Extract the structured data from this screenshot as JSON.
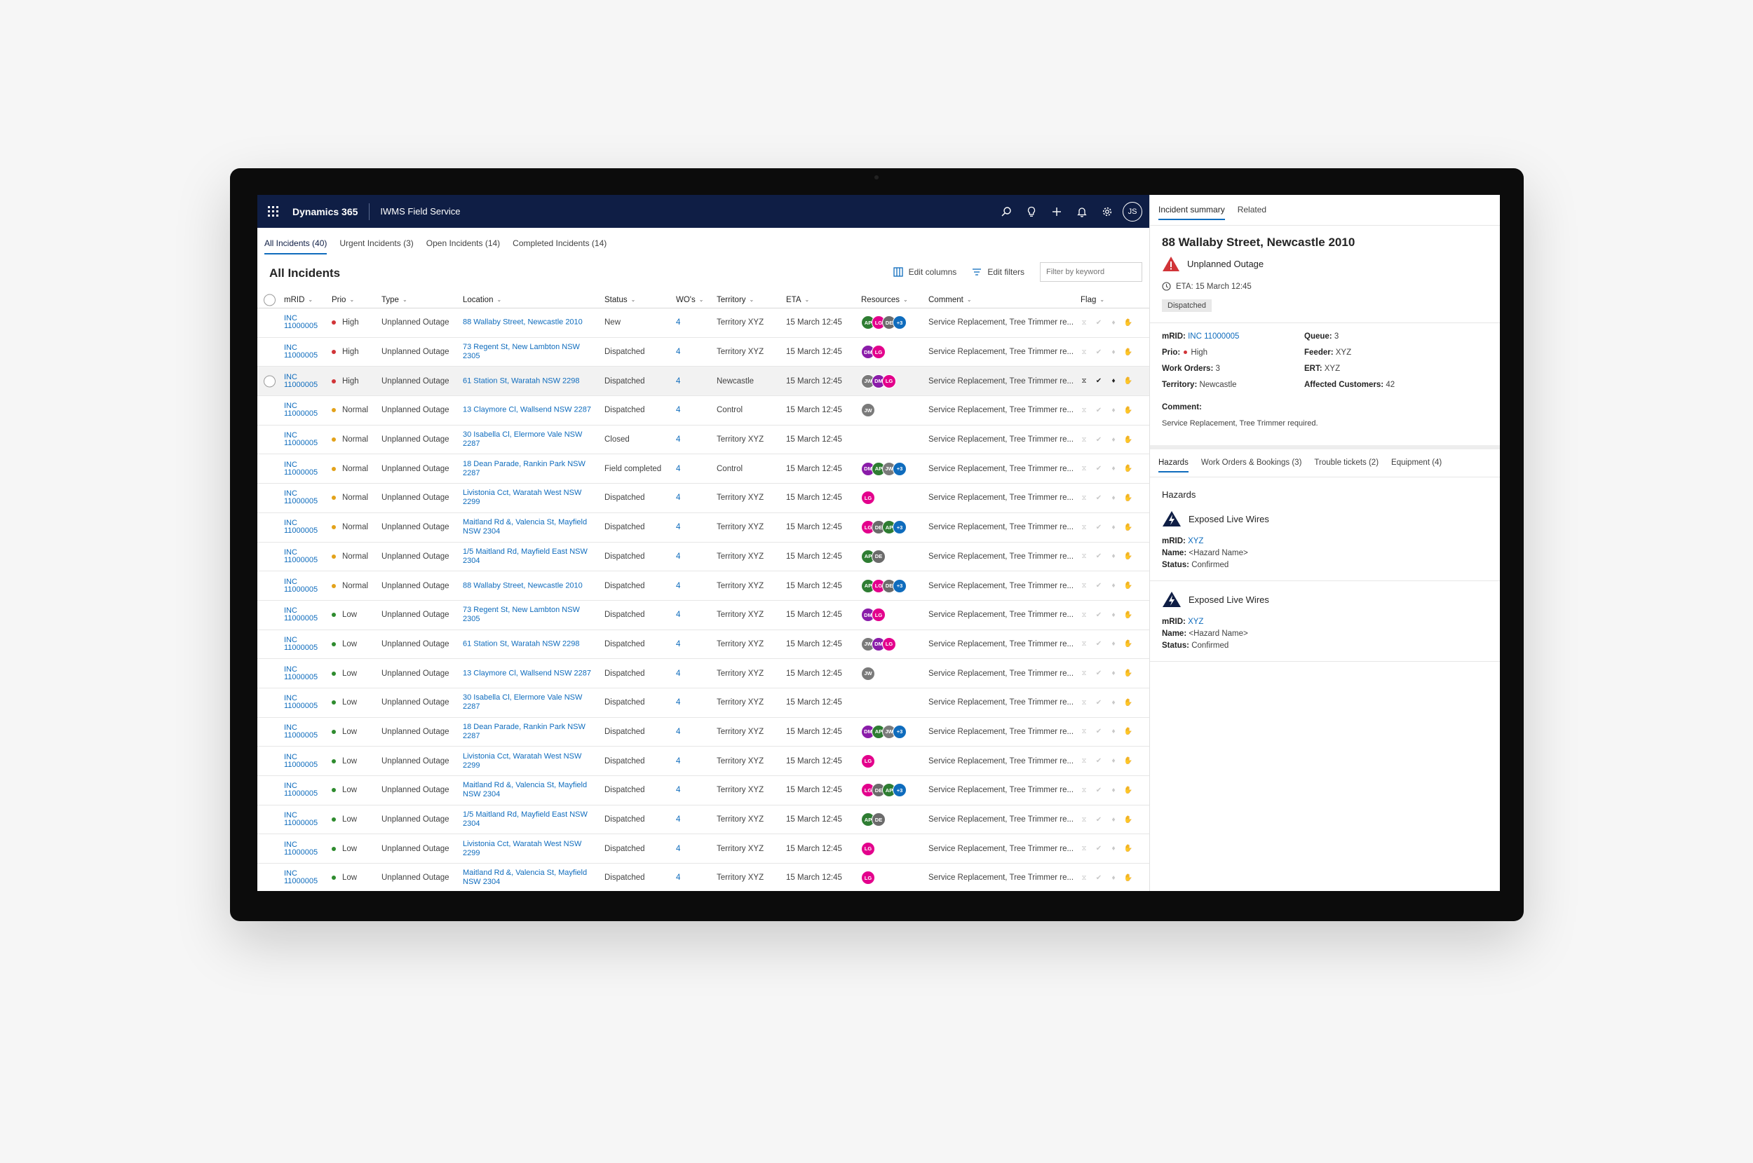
{
  "app": {
    "brand": "Dynamics 365",
    "name": "IWMS Field Service",
    "user_initials": "JS"
  },
  "tabs": [
    "All Incidents (40)",
    "Urgent Incidents (3)",
    "Open Incidents (14)",
    "Completed Incidents (14)"
  ],
  "list": {
    "title": "All Incidents",
    "edit_columns": "Edit columns",
    "edit_filters": "Edit filters",
    "filter_placeholder": "Filter by keyword"
  },
  "columns": [
    "mRID",
    "Prio",
    "Type",
    "Location",
    "Status",
    "WO's",
    "Territory",
    "ETA",
    "Resources",
    "Comment",
    "Flag"
  ],
  "colors": {
    "high": "#d13438",
    "normal": "#e3a21a",
    "low": "#2e8b2e",
    "AP": "#2e7d32",
    "LG": "#e3008c",
    "DE": "#6b6b6b",
    "DM": "#8a1ca9",
    "JW": "#7a7a7a",
    "+3": "#0f6cbd"
  },
  "rows": [
    {
      "id": "INC 11000005",
      "prio": "High",
      "type": "Unplanned Outage",
      "loc": "88 Wallaby Street, Newcastle 2010",
      "status": "New",
      "wos": "4",
      "terr": "Territory XYZ",
      "eta": "15 March 12:45",
      "res": [
        "AP",
        "LG",
        "DE",
        "+3"
      ],
      "comment": "Service Replacement, Tree Trimmer re..."
    },
    {
      "id": "INC 11000005",
      "prio": "High",
      "type": "Unplanned Outage",
      "loc": "73 Regent St, New Lambton NSW 2305",
      "status": "Dispatched",
      "wos": "4",
      "terr": "Territory XYZ",
      "eta": "15 March 12:45",
      "res": [
        "DM",
        "LG"
      ],
      "comment": "Service Replacement, Tree Trimmer re..."
    },
    {
      "id": "INC 11000005",
      "prio": "High",
      "type": "Unplanned Outage",
      "loc": "61 Station St, Waratah NSW 2298",
      "status": "Dispatched",
      "wos": "4",
      "terr": "Newcastle",
      "eta": "15 March 12:45",
      "res": [
        "JW",
        "DM",
        "LG"
      ],
      "comment": "Service Replacement, Tree Trimmer re...",
      "selected": true
    },
    {
      "id": "INC 11000005",
      "prio": "Normal",
      "type": "Unplanned Outage",
      "loc": "13 Claymore Cl, Wallsend NSW 2287",
      "status": "Dispatched",
      "wos": "4",
      "terr": "Control",
      "eta": "15 March 12:45",
      "res": [
        "JW"
      ],
      "comment": "Service Replacement, Tree Trimmer re..."
    },
    {
      "id": "INC 11000005",
      "prio": "Normal",
      "type": "Unplanned Outage",
      "loc": "30 Isabella Cl, Elermore Vale NSW 2287",
      "status": "Closed",
      "wos": "4",
      "terr": "Territory XYZ",
      "eta": "15 March 12:45",
      "res": [],
      "comment": "Service Replacement, Tree Trimmer re..."
    },
    {
      "id": "INC 11000005",
      "prio": "Normal",
      "type": "Unplanned Outage",
      "loc": "18 Dean Parade, Rankin Park NSW 2287",
      "status": "Field completed",
      "wos": "4",
      "terr": "Control",
      "eta": "15 March 12:45",
      "res": [
        "DM",
        "AP",
        "JW",
        "+3"
      ],
      "comment": "Service Replacement, Tree Trimmer re..."
    },
    {
      "id": "INC 11000005",
      "prio": "Normal",
      "type": "Unplanned Outage",
      "loc": "Livistonia Cct, Waratah West NSW 2299",
      "status": "Dispatched",
      "wos": "4",
      "terr": "Territory XYZ",
      "eta": "15 March 12:45",
      "res": [
        "LG"
      ],
      "comment": "Service Replacement, Tree Trimmer re..."
    },
    {
      "id": "INC 11000005",
      "prio": "Normal",
      "type": "Unplanned Outage",
      "loc": "Maitland Rd &, Valencia St, Mayfield NSW 2304",
      "status": "Dispatched",
      "wos": "4",
      "terr": "Territory XYZ",
      "eta": "15 March 12:45",
      "res": [
        "LG",
        "DE",
        "AP",
        "+3"
      ],
      "comment": "Service Replacement, Tree Trimmer re..."
    },
    {
      "id": "INC 11000005",
      "prio": "Normal",
      "type": "Unplanned Outage",
      "loc": "1/5 Maitland Rd, Mayfield East NSW 2304",
      "status": "Dispatched",
      "wos": "4",
      "terr": "Territory XYZ",
      "eta": "15 March 12:45",
      "res": [
        "AP",
        "DE"
      ],
      "comment": "Service Replacement, Tree Trimmer re..."
    },
    {
      "id": "INC 11000005",
      "prio": "Normal",
      "type": "Unplanned Outage",
      "loc": "88 Wallaby Street, Newcastle 2010",
      "status": "Dispatched",
      "wos": "4",
      "terr": "Territory XYZ",
      "eta": "15 March 12:45",
      "res": [
        "AP",
        "LG",
        "DE",
        "+3"
      ],
      "comment": "Service Replacement, Tree Trimmer re..."
    },
    {
      "id": "INC 11000005",
      "prio": "Low",
      "type": "Unplanned Outage",
      "loc": "73 Regent St, New Lambton NSW 2305",
      "status": "Dispatched",
      "wos": "4",
      "terr": "Territory XYZ",
      "eta": "15 March 12:45",
      "res": [
        "DM",
        "LG"
      ],
      "comment": "Service Replacement, Tree Trimmer re..."
    },
    {
      "id": "INC 11000005",
      "prio": "Low",
      "type": "Unplanned Outage",
      "loc": "61 Station St, Waratah NSW 2298",
      "status": "Dispatched",
      "wos": "4",
      "terr": "Territory XYZ",
      "eta": "15 March 12:45",
      "res": [
        "JW",
        "DM",
        "LG"
      ],
      "comment": "Service Replacement, Tree Trimmer re..."
    },
    {
      "id": "INC 11000005",
      "prio": "Low",
      "type": "Unplanned Outage",
      "loc": "13 Claymore Cl, Wallsend NSW 2287",
      "status": "Dispatched",
      "wos": "4",
      "terr": "Territory XYZ",
      "eta": "15 March 12:45",
      "res": [
        "JW"
      ],
      "comment": "Service Replacement, Tree Trimmer re..."
    },
    {
      "id": "INC 11000005",
      "prio": "Low",
      "type": "Unplanned Outage",
      "loc": "30 Isabella Cl, Elermore Vale NSW 2287",
      "status": "Dispatched",
      "wos": "4",
      "terr": "Territory XYZ",
      "eta": "15 March 12:45",
      "res": [],
      "comment": "Service Replacement, Tree Trimmer re..."
    },
    {
      "id": "INC 11000005",
      "prio": "Low",
      "type": "Unplanned Outage",
      "loc": "18 Dean Parade, Rankin Park NSW 2287",
      "status": "Dispatched",
      "wos": "4",
      "terr": "Territory XYZ",
      "eta": "15 March 12:45",
      "res": [
        "DM",
        "AP",
        "JW",
        "+3"
      ],
      "comment": "Service Replacement, Tree Trimmer re..."
    },
    {
      "id": "INC 11000005",
      "prio": "Low",
      "type": "Unplanned Outage",
      "loc": "Livistonia Cct, Waratah West NSW 2299",
      "status": "Dispatched",
      "wos": "4",
      "terr": "Territory XYZ",
      "eta": "15 March 12:45",
      "res": [
        "LG"
      ],
      "comment": "Service Replacement, Tree Trimmer re..."
    },
    {
      "id": "INC 11000005",
      "prio": "Low",
      "type": "Unplanned Outage",
      "loc": "Maitland Rd &, Valencia St, Mayfield NSW 2304",
      "status": "Dispatched",
      "wos": "4",
      "terr": "Territory XYZ",
      "eta": "15 March 12:45",
      "res": [
        "LG",
        "DE",
        "AP",
        "+3"
      ],
      "comment": "Service Replacement, Tree Trimmer re..."
    },
    {
      "id": "INC 11000005",
      "prio": "Low",
      "type": "Unplanned Outage",
      "loc": "1/5 Maitland Rd, Mayfield East NSW 2304",
      "status": "Dispatched",
      "wos": "4",
      "terr": "Territory XYZ",
      "eta": "15 March 12:45",
      "res": [
        "AP",
        "DE"
      ],
      "comment": "Service Replacement, Tree Trimmer re..."
    },
    {
      "id": "INC 11000005",
      "prio": "Low",
      "type": "Unplanned Outage",
      "loc": "Livistonia Cct, Waratah West NSW 2299",
      "status": "Dispatched",
      "wos": "4",
      "terr": "Territory XYZ",
      "eta": "15 March 12:45",
      "res": [
        "LG"
      ],
      "comment": "Service Replacement, Tree Trimmer re..."
    },
    {
      "id": "INC 11000005",
      "prio": "Low",
      "type": "Unplanned Outage",
      "loc": "Maitland Rd &, Valencia St, Mayfield NSW 2304",
      "status": "Dispatched",
      "wos": "4",
      "terr": "Territory XYZ",
      "eta": "15 March 12:45",
      "res": [
        "LG"
      ],
      "comment": "Service Replacement, Tree Trimmer re..."
    }
  ],
  "panel": {
    "tabs": [
      "Incident summary",
      "Related"
    ],
    "title": "88 Wallaby Street, Newcastle 2010",
    "type": "Unplanned Outage",
    "eta": "ETA: 15 March 12:45",
    "status": "Dispatched",
    "fields_left": [
      {
        "k": "mRID:",
        "v": "INC 11000005",
        "link": true
      },
      {
        "k": "Prio:",
        "v": "High",
        "dot": true
      },
      {
        "k": "Work Orders:",
        "v": "3"
      },
      {
        "k": "Territory:",
        "v": "Newcastle"
      }
    ],
    "fields_right": [
      {
        "k": "Queue:",
        "v": "3"
      },
      {
        "k": "Feeder:",
        "v": "XYZ"
      },
      {
        "k": "ERT:",
        "v": "XYZ"
      },
      {
        "k": "Affected Customers:",
        "v": "42"
      }
    ],
    "comment_label": "Comment:",
    "comment": "Service Replacement, Tree Trimmer required.",
    "subtabs": [
      "Hazards",
      "Work Orders & Bookings (3)",
      "Trouble tickets (2)",
      "Equipment (4)"
    ],
    "hazards_title": "Hazards",
    "hazards": [
      {
        "name": "Exposed Live Wires",
        "mrid_label": "mRID:",
        "mrid": "XYZ",
        "name_label": "Name:",
        "hname": "<Hazard Name>",
        "status_label": "Status:",
        "status": "Confirmed"
      },
      {
        "name": "Exposed Live Wires",
        "mrid_label": "mRID:",
        "mrid": "XYZ",
        "name_label": "Name:",
        "hname": "<Hazard Name>",
        "status_label": "Status:",
        "status": "Confirmed"
      }
    ]
  }
}
